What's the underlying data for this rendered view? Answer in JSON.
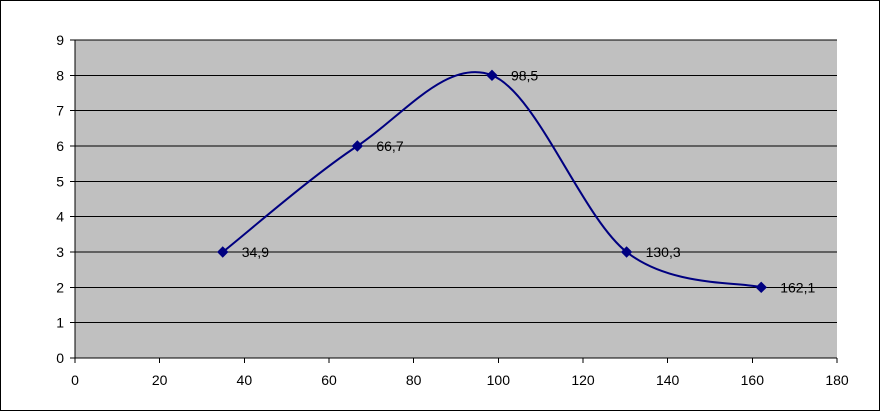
{
  "chart_data": {
    "type": "scatter",
    "x": [
      34.9,
      66.7,
      98.5,
      130.3,
      162.1
    ],
    "y": [
      3,
      6,
      8,
      3,
      2
    ],
    "data_labels": [
      "34,9",
      "66,7",
      "98,5",
      "130,3",
      "162,1"
    ],
    "xlim": [
      0,
      180
    ],
    "ylim": [
      0,
      9
    ],
    "x_ticks": [
      "0",
      "20",
      "40",
      "60",
      "80",
      "100",
      "120",
      "140",
      "160",
      "180"
    ],
    "y_ticks": [
      "0",
      "1",
      "2",
      "3",
      "4",
      "5",
      "6",
      "7",
      "8",
      "9"
    ],
    "smoothed_line": true,
    "marker": "diamond",
    "grid": "horizontal",
    "legend": "none",
    "title": "",
    "xlabel": "",
    "ylabel": "",
    "colors": {
      "plot_background": "#c0c0c0",
      "series": "#000080",
      "gridline": "#000000"
    }
  }
}
